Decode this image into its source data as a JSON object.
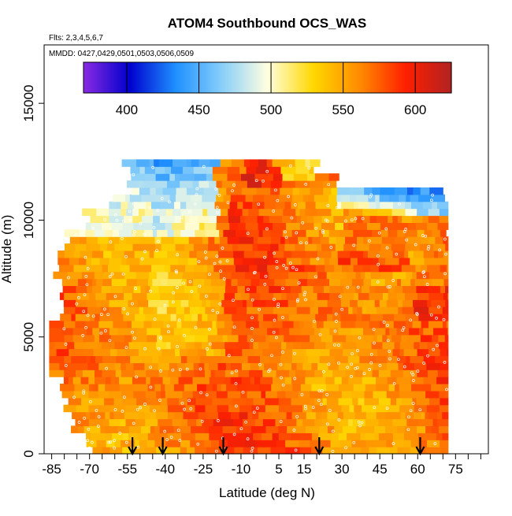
{
  "chart_data": {
    "type": "heatmap",
    "title": "ATOM4 Southbound OCS_WAS",
    "flights_note": "Flts: 2,3,4,5,6,7",
    "dates_note": "MMDD: 0427,0429,0501,0503,0506,0509",
    "xlabel": "Latitude (deg N)",
    "ylabel": "Altitude (m)",
    "xlim": [
      -88,
      88
    ],
    "ylim": [
      0,
      17500
    ],
    "x_ticks": [
      -85,
      -70,
      -55,
      -40,
      -25,
      -10,
      5,
      15,
      30,
      45,
      60,
      75
    ],
    "x_minor_ticks": [
      -80,
      -75,
      -65,
      -60,
      -50,
      -45,
      -35,
      -30,
      -20,
      -15,
      -5,
      0,
      10,
      20,
      25,
      35,
      40,
      50,
      55,
      65,
      70,
      80,
      85
    ],
    "y_ticks": [
      0,
      5000,
      10000,
      15000
    ],
    "colorbar": {
      "min": 370,
      "max": 625,
      "ticks": [
        400,
        450,
        500,
        550,
        600
      ],
      "colors": [
        "#8a2be2",
        "#0000cd",
        "#1e90ff",
        "#87cefa",
        "#ffffe0",
        "#ffd700",
        "#ff8c00",
        "#ff2000",
        "#b22222"
      ]
    },
    "arrow_latitudes": [
      -53,
      -41,
      -17,
      21,
      61
    ],
    "field": {
      "lat_range": [
        -86,
        72
      ],
      "alt_step": 300,
      "description": "Curtain of OCS mixing ratio (ppt) vs latitude and altitude"
    }
  }
}
